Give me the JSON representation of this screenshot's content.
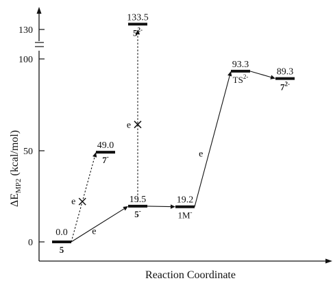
{
  "chart_data": {
    "type": "line",
    "xlabel": "Reaction Coordinate",
    "ylabel_main": "ΔE",
    "ylabel_sub": "MP2",
    "ylabel_unit": "(kcal/mol)",
    "y_ticks": [
      "0",
      "50",
      "100",
      "130"
    ],
    "y_break": true,
    "levels": [
      {
        "id": "L5",
        "energy": 0.0,
        "energy_label": "0.0",
        "species": "5",
        "charge": "",
        "bold": true,
        "col": 0
      },
      {
        "id": "L7a",
        "energy": 49.0,
        "energy_label": "49.0",
        "species": "7",
        "charge": "-",
        "bold": true,
        "col": 1
      },
      {
        "id": "L5b",
        "energy": 19.5,
        "energy_label": "19.5",
        "species": "5",
        "charge": "-",
        "bold": true,
        "col": 2
      },
      {
        "id": "L5c",
        "energy": 133.5,
        "energy_label": "133.5",
        "species": "5",
        "charge": "2-",
        "bold": true,
        "col": 2
      },
      {
        "id": "L1M",
        "energy": 19.2,
        "energy_label": "19.2",
        "species": "1M",
        "charge": "-",
        "bold": false,
        "col": 3
      },
      {
        "id": "LTS",
        "energy": 93.3,
        "energy_label": "93.3",
        "species": "TS",
        "charge": "2-",
        "bold": false,
        "col": 4
      },
      {
        "id": "L7b",
        "energy": 89.3,
        "energy_label": "89.3",
        "species": "7",
        "charge": "2-",
        "bold": true,
        "col": 5
      }
    ],
    "connections": [
      {
        "from": "L5",
        "to": "L5b",
        "style": "solid",
        "label": "e",
        "crossed": false
      },
      {
        "from": "L5",
        "to": "L7a",
        "style": "dashed",
        "label": "e",
        "crossed": true
      },
      {
        "from": "L5b",
        "to": "L5c",
        "style": "dashed",
        "label": "e",
        "crossed": true
      },
      {
        "from": "L5b",
        "to": "L1M",
        "style": "solid",
        "label": "",
        "crossed": false
      },
      {
        "from": "L1M",
        "to": "LTS",
        "style": "solid",
        "label": "e",
        "crossed": false
      },
      {
        "from": "LTS",
        "to": "L7b",
        "style": "solid",
        "label": "",
        "crossed": false
      }
    ]
  }
}
